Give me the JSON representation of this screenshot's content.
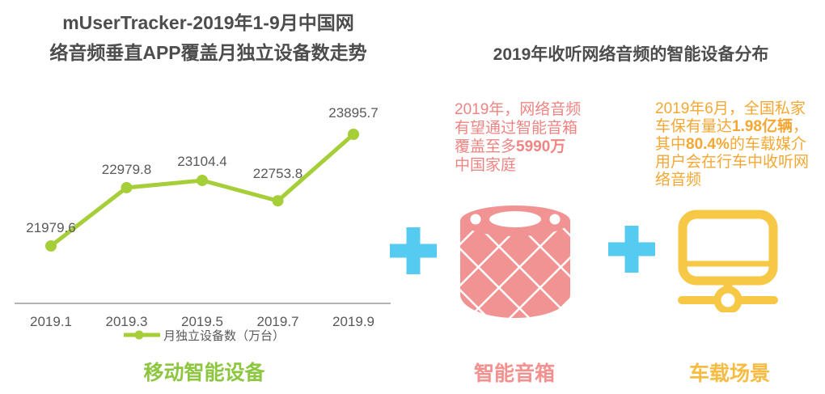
{
  "left_panel": {
    "title_line1": "mUserTracker-2019年1-9月中国网",
    "title_line2": "络音频垂直APP覆盖月独立设备数走势",
    "caption": "移动智能设备"
  },
  "right_panel": {
    "title": "2019年收听网络音频的智能设备分布",
    "speaker_note": {
      "line1": "2019年，网络音频",
      "line2": "有望通过智能音箱",
      "line3_normal": "覆盖至多",
      "line3_bold": "5990万",
      "line4": "中国家庭"
    },
    "car_note": {
      "line1": "2019年6月，全国私家",
      "line2_normal": "车保有量达",
      "line2_bold": "1.98亿辆",
      "line2_tail": "，",
      "line3_normal": "其中",
      "line3_bold": "80.4%",
      "line3_tail": "的车载媒介",
      "line4": "用户会在行车中收听网",
      "line5": "络音频"
    },
    "speaker_label": "智能音箱",
    "car_label": "车载场景"
  },
  "chart_data": {
    "type": "line",
    "title": "mUserTracker-2019年1-9月中国网络音频垂直APP覆盖月独立设备数走势",
    "categories": [
      "2019.1",
      "2019.3",
      "2019.5",
      "2019.7",
      "2019.9"
    ],
    "series": [
      {
        "name": "月独立设备数（万台）",
        "values": [
          21979.6,
          22979.8,
          23104.4,
          22753.8,
          23895.7
        ]
      }
    ],
    "unit": "万台",
    "grid": false,
    "y_axis_shown": false,
    "legend_position": "bottom",
    "line_color": "#a6ce38",
    "label_color": "#595959",
    "axis_color": "#b3b3b3"
  },
  "colors": {
    "title_gray": "#4d4d4d",
    "green_accent": "#8dc63f",
    "pink_accent": "#f4918f",
    "pink_text": "#ef8583",
    "blue_plus": "#55cbf2",
    "orange_text": "#f5a733",
    "yellow_icon": "#f7c846",
    "yellow_label": "#f8bc45"
  }
}
